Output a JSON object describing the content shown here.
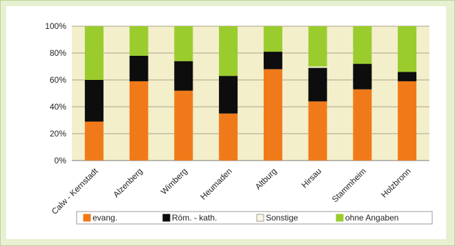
{
  "chart_data": {
    "type": "bar",
    "stacked": true,
    "percent": true,
    "categories": [
      "Calw - Kernstadt",
      "Alzenberg",
      "Wimberg",
      "Heumaden",
      "Altburg",
      "Hirsau",
      "Stammheim",
      "Holzbronn"
    ],
    "series": [
      {
        "name": "evang.",
        "color": "#f07a1a",
        "values": [
          29,
          59,
          52,
          35,
          68,
          44,
          53,
          59
        ]
      },
      {
        "name": "Röm. - kath.",
        "color": "#0d0d0d",
        "values": [
          31,
          19,
          22,
          28,
          13,
          25,
          19,
          7
        ]
      },
      {
        "name": "Sonstige",
        "color": "#fbf6e4",
        "values": [
          0,
          0,
          0,
          0,
          0,
          1,
          0,
          0
        ]
      },
      {
        "name": "ohne Angaben",
        "color": "#9acc2e",
        "values": [
          40,
          22,
          26,
          37,
          19,
          30,
          28,
          34
        ]
      }
    ],
    "ylim": [
      0,
      100
    ],
    "yticks": [
      "0%",
      "20%",
      "40%",
      "60%",
      "80%",
      "100%"
    ],
    "plot_background": "#f3efcb",
    "grid": true,
    "legend_position": "bottom"
  }
}
